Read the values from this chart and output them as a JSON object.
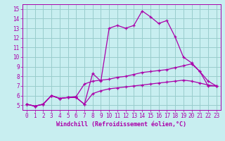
{
  "xlabel": "Windchill (Refroidissement éolien,°C)",
  "ylabel": "",
  "xlim": [
    -0.5,
    23.5
  ],
  "ylim": [
    4.5,
    15.5
  ],
  "xticks": [
    0,
    1,
    2,
    3,
    4,
    5,
    6,
    7,
    8,
    9,
    10,
    11,
    12,
    13,
    14,
    15,
    16,
    17,
    18,
    19,
    20,
    21,
    22,
    23
  ],
  "yticks": [
    5,
    6,
    7,
    8,
    9,
    10,
    11,
    12,
    13,
    14,
    15
  ],
  "background_color": "#c8eef0",
  "line_color": "#aa00aa",
  "grid_color": "#99cccc",
  "line1_x": [
    0,
    1,
    2,
    3,
    4,
    5,
    6,
    7,
    8,
    9,
    10,
    11,
    12,
    13,
    14,
    15,
    16,
    17,
    18,
    19,
    20,
    21,
    22,
    23
  ],
  "line1_y": [
    5.1,
    4.9,
    5.1,
    6.0,
    5.7,
    5.8,
    5.8,
    5.1,
    8.3,
    7.5,
    13.0,
    13.3,
    13.0,
    13.3,
    14.8,
    14.2,
    13.5,
    13.8,
    12.1,
    10.0,
    9.4,
    8.5,
    7.0,
    7.0
  ],
  "line2_x": [
    0,
    1,
    2,
    3,
    4,
    5,
    6,
    7,
    8,
    9,
    10,
    11,
    12,
    13,
    14,
    15,
    16,
    17,
    18,
    19,
    20,
    21,
    22,
    23
  ],
  "line2_y": [
    5.1,
    4.9,
    5.1,
    6.0,
    5.7,
    5.8,
    5.9,
    7.2,
    7.5,
    7.6,
    7.7,
    7.9,
    8.0,
    8.2,
    8.4,
    8.5,
    8.6,
    8.7,
    8.9,
    9.1,
    9.3,
    8.5,
    7.5,
    7.0
  ],
  "line3_x": [
    0,
    1,
    2,
    3,
    4,
    5,
    6,
    7,
    8,
    9,
    10,
    11,
    12,
    13,
    14,
    15,
    16,
    17,
    18,
    19,
    20,
    21,
    22,
    23
  ],
  "line3_y": [
    5.1,
    4.9,
    5.1,
    6.0,
    5.7,
    5.8,
    5.8,
    5.1,
    6.2,
    6.5,
    6.7,
    6.8,
    6.9,
    7.0,
    7.1,
    7.2,
    7.3,
    7.4,
    7.5,
    7.6,
    7.5,
    7.3,
    7.1,
    7.0
  ],
  "tick_fontsize": 5.5,
  "xlabel_fontsize": 6.0
}
